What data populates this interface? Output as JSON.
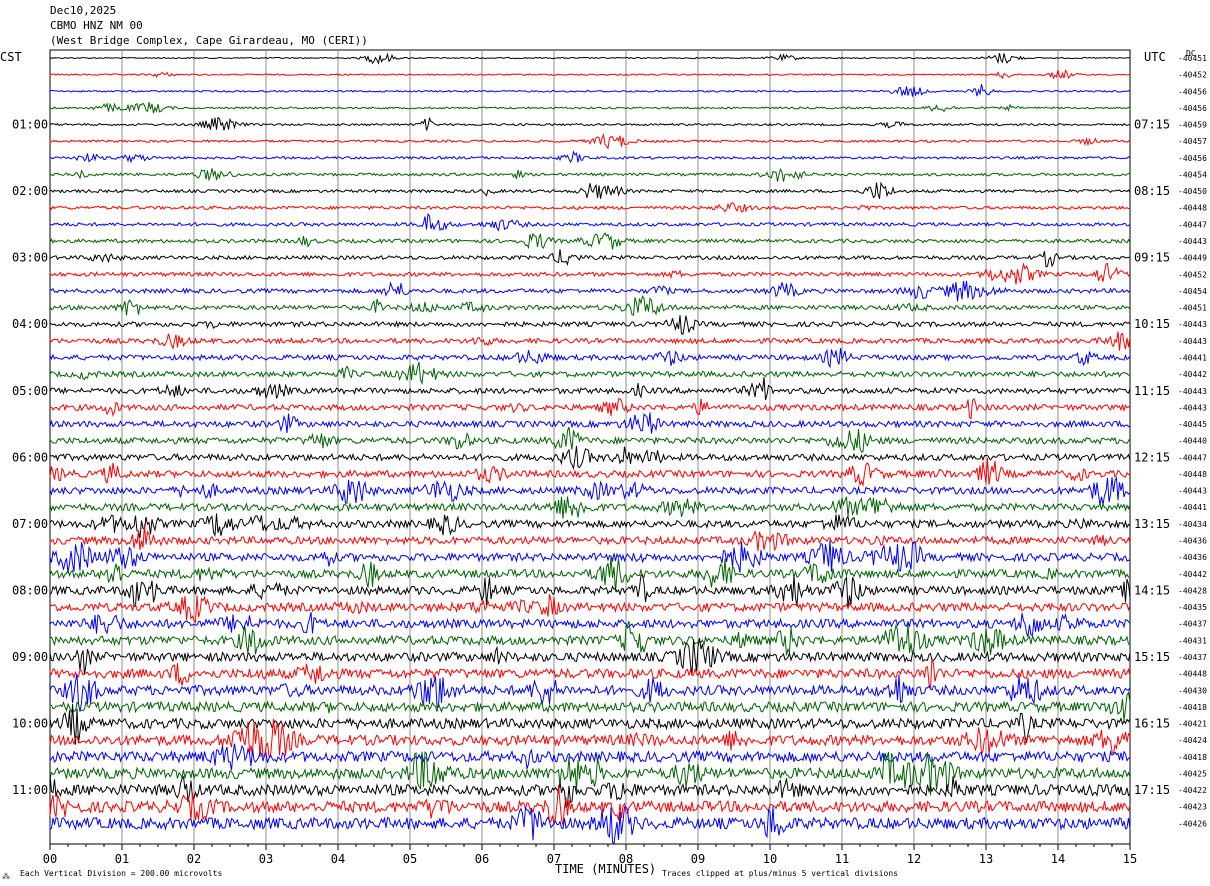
{
  "header": {
    "date": "Dec10,2025",
    "station": "CBMO HNZ NM 00",
    "location": "(West Bridge Complex, Cape Girardeau, MO (CERI))"
  },
  "chart_data": {
    "type": "line",
    "left_timezone": "CST",
    "right_timezone": "UTC",
    "dc_label": "DC",
    "xlabel": "TIME (MINUTES)",
    "x_ticks": [
      "00",
      "01",
      "02",
      "03",
      "04",
      "05",
      "06",
      "07",
      "08",
      "09",
      "10",
      "11",
      "12",
      "13",
      "14",
      "15"
    ],
    "xlim": [
      0,
      15
    ],
    "grid": true,
    "trace_colors": [
      "#000000",
      "#ff0000",
      "#0000ff",
      "#006400"
    ],
    "left_hour_labels": [
      "01:00",
      "02:00",
      "03:00",
      "04:00",
      "05:00",
      "06:00",
      "07:00",
      "08:00",
      "09:00",
      "10:00",
      "11:00"
    ],
    "right_hour_labels": [
      "07:15",
      "08:15",
      "09:15",
      "10:15",
      "11:15",
      "12:15",
      "13:15",
      "14:15",
      "15:15",
      "16:15",
      "17:15"
    ],
    "dc_offsets": [
      "-40451",
      "-40452",
      "-40456",
      "-40456",
      "-40459",
      "-40457",
      "-40456",
      "-40454",
      "-40450",
      "-40448",
      "-40447",
      "-40443",
      "-40449",
      "-40452",
      "-40454",
      "-40451",
      "-40443",
      "-40443",
      "-40441",
      "-40442",
      "-40443",
      "-40443",
      "-40445",
      "-40440",
      "-40447",
      "-40448",
      "-40443",
      "-40441",
      "-40434",
      "-40436",
      "-40436",
      "-40442",
      "-40428",
      "-40435",
      "-40437",
      "-40431",
      "-40437",
      "-40448",
      "-40430",
      "-40418",
      "-40421",
      "-40424",
      "-40418",
      "-40425",
      "-40422",
      "-40423",
      "-40426"
    ],
    "footer_left": "Each Vertical Division =  200.00 microvolts",
    "footer_right": "Traces clipped at plus/minus 5 vertical divisions",
    "corner_mark": "⁂"
  }
}
